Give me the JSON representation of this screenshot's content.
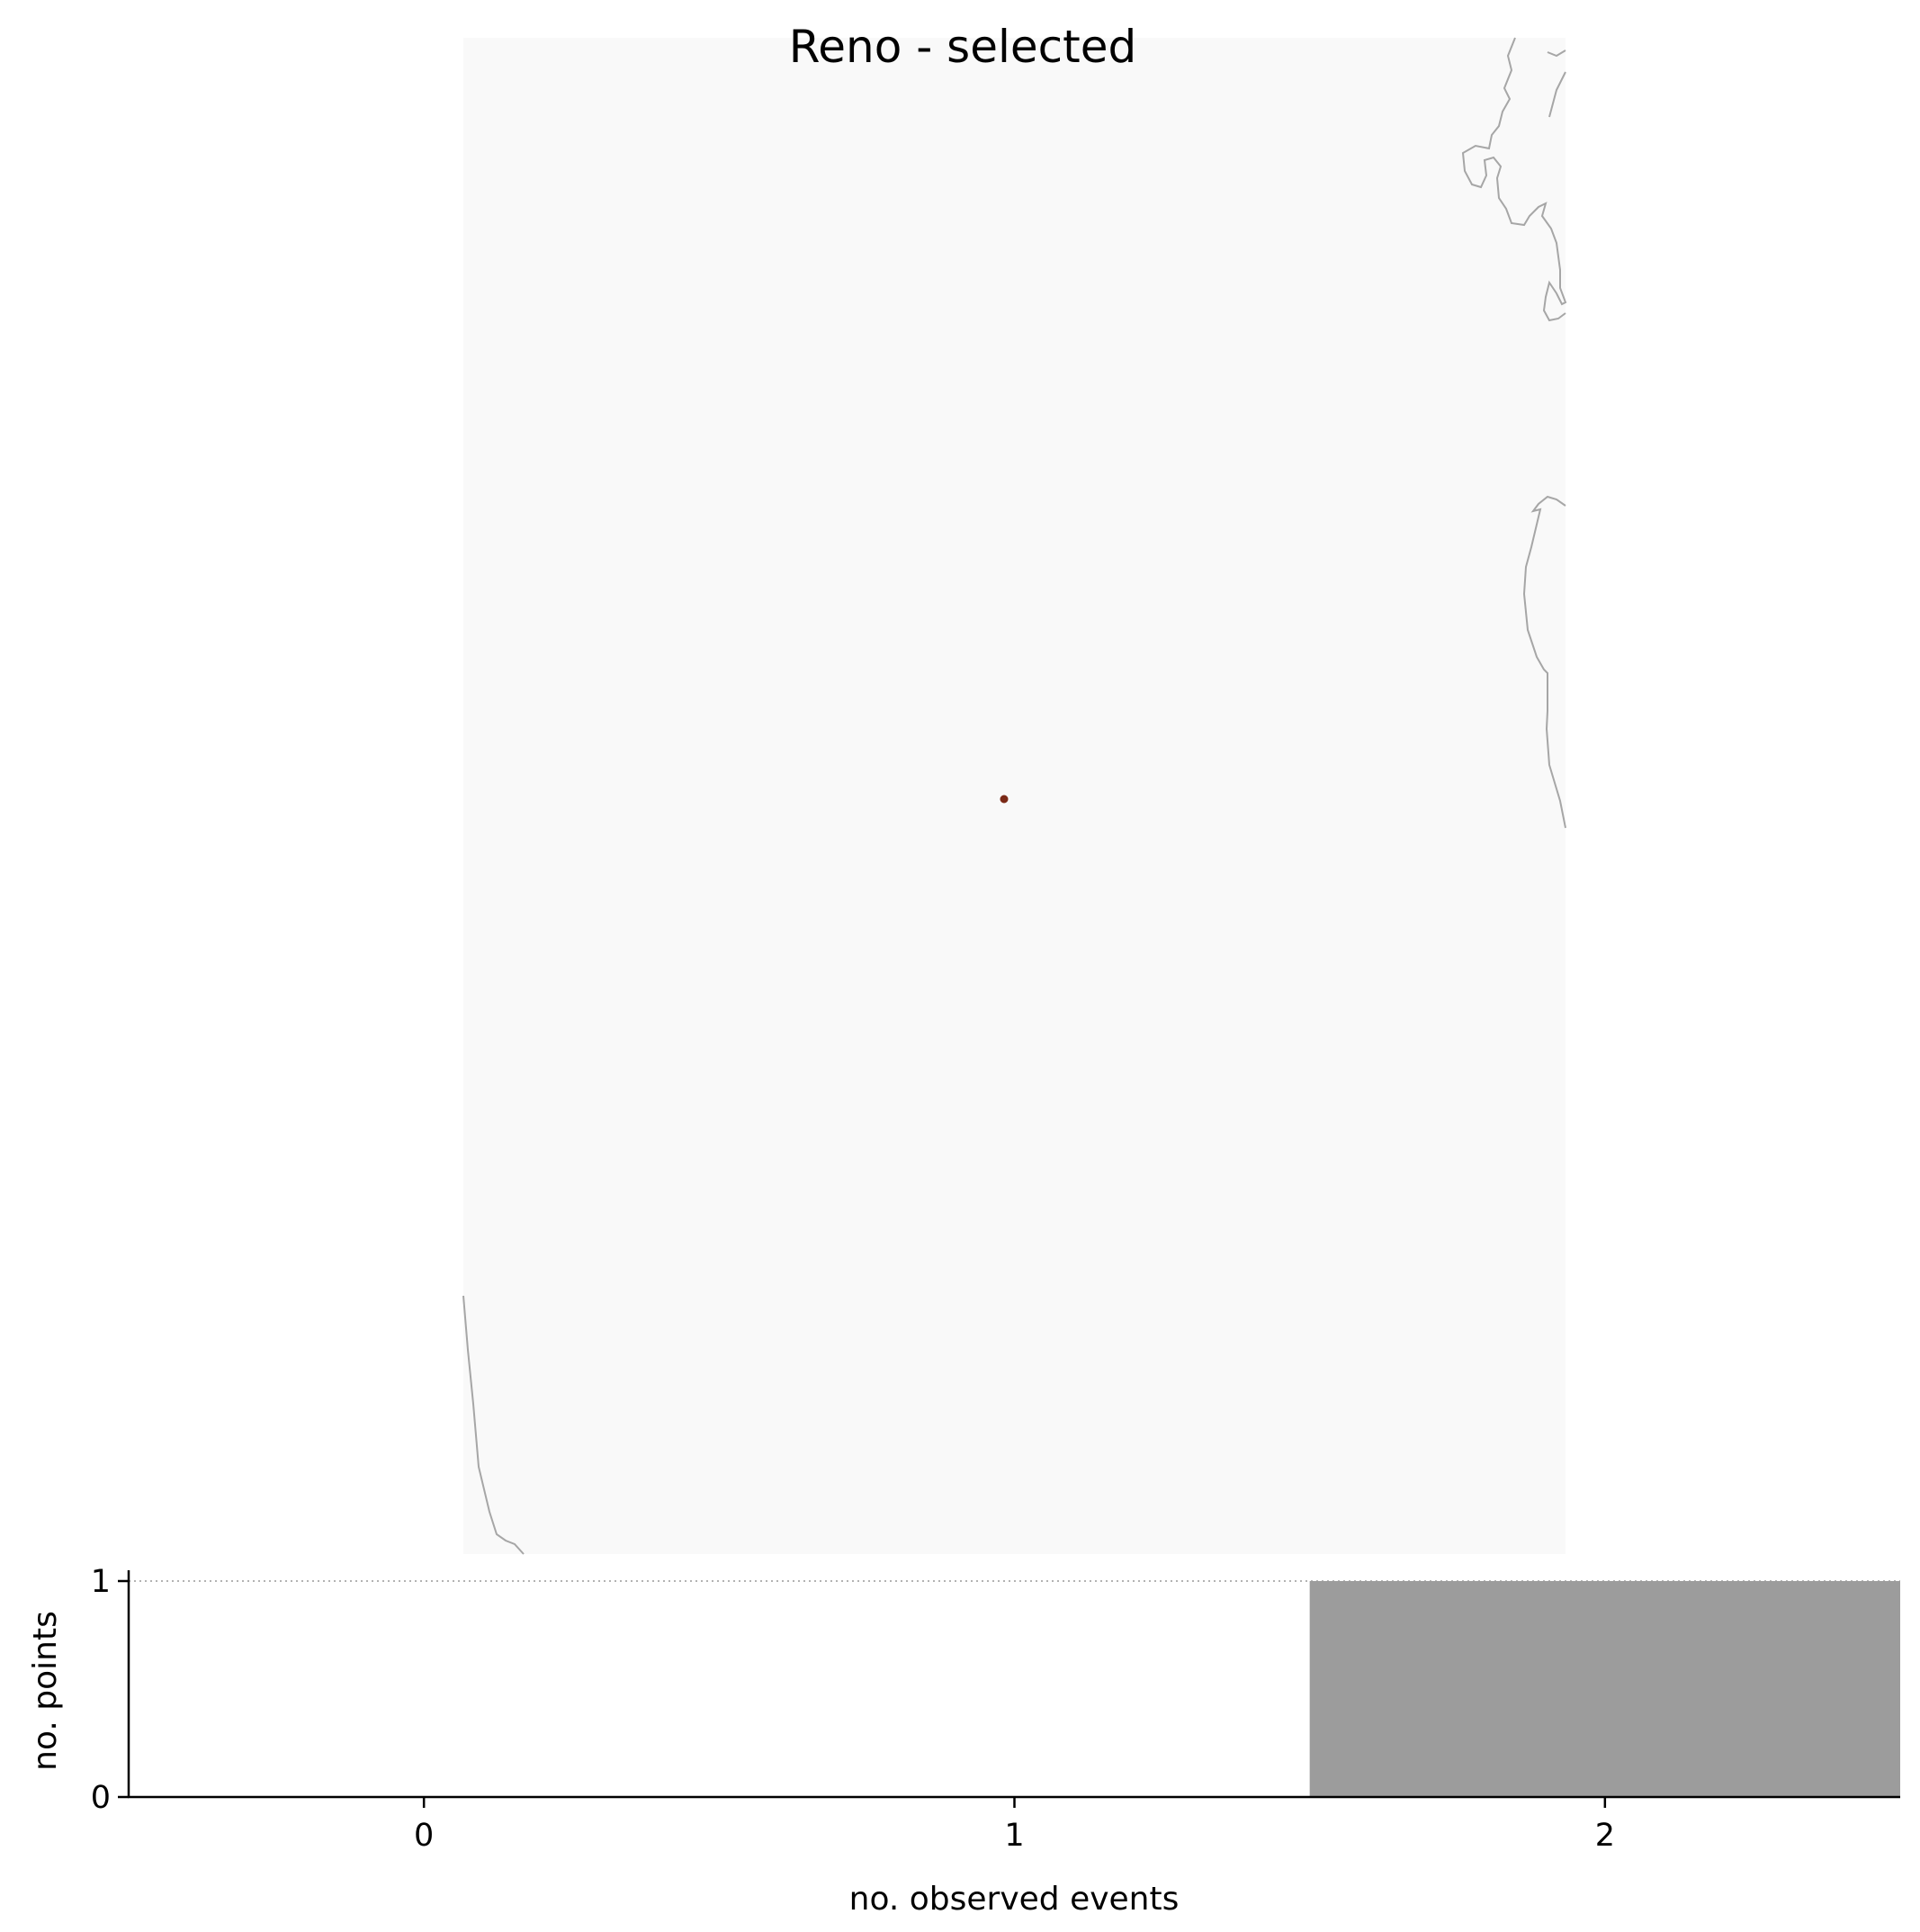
{
  "title": "Reno - selected",
  "map": {
    "land_color": "#f9f9f9",
    "coast_color": "#a6a6a6",
    "marker_color": "#7b2a17",
    "marker": "selected-location-point"
  },
  "chart_data": {
    "type": "bar",
    "title": "Reno - selected",
    "xlabel": "no. observed events",
    "ylabel": "no. points",
    "x": [
      0,
      1,
      2
    ],
    "values": [
      0,
      0,
      1
    ],
    "xlim": [
      -0.5,
      2.5
    ],
    "ylim": [
      0,
      1.05
    ],
    "xticks": [
      "0",
      "1",
      "2"
    ],
    "yticks": [
      "0",
      "1"
    ],
    "bar_color": "#9c9c9c",
    "reference_line": {
      "y": 1,
      "style": "dotted"
    },
    "grid": false,
    "legend": "none"
  }
}
